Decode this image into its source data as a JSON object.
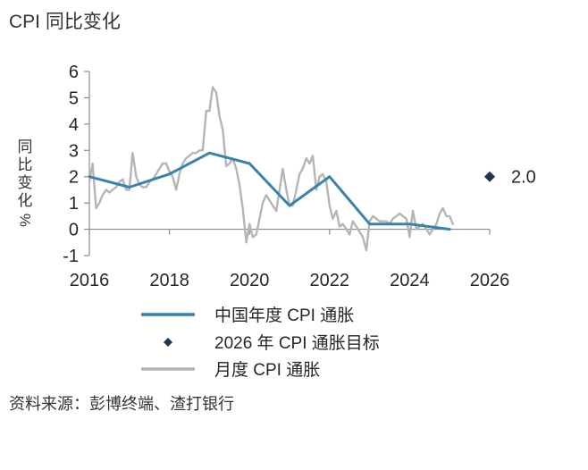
{
  "title": "CPI 同比变化",
  "source": "资料来源：彭博终端、渣打银行",
  "chart_data": {
    "type": "line",
    "ylabel": "同比变化%",
    "xlim": [
      2016,
      2026
    ],
    "ylim": [
      -1,
      6
    ],
    "x_ticks": [
      "2016",
      "2018",
      "2020",
      "2022",
      "2024",
      "2026"
    ],
    "y_ticks": [
      "-1",
      "0",
      "1",
      "2",
      "3",
      "4",
      "5",
      "6"
    ],
    "grid": false,
    "legend_position": "bottom",
    "colors": {
      "annual": "#3a82ab",
      "target": "#1f3550",
      "monthly": "#b5b5b5"
    },
    "series": [
      {
        "name": "中国年度 CPI 通胀",
        "x": [
          2016.0,
          2017.0,
          2018.0,
          2019.0,
          2020.0,
          2021.0,
          2022.0,
          2023.0,
          2024.0,
          2025.0
        ],
        "values": [
          2.0,
          1.6,
          2.1,
          2.9,
          2.5,
          0.9,
          2.0,
          0.2,
          0.2,
          0.0
        ]
      },
      {
        "name": "月度 CPI 通胀",
        "x": [
          2016.0,
          2016.08,
          2016.17,
          2016.25,
          2016.33,
          2016.42,
          2016.5,
          2016.58,
          2016.67,
          2016.75,
          2016.83,
          2016.92,
          2017.0,
          2017.08,
          2017.17,
          2017.25,
          2017.33,
          2017.42,
          2017.5,
          2017.58,
          2017.67,
          2017.75,
          2017.83,
          2017.92,
          2018.0,
          2018.08,
          2018.17,
          2018.25,
          2018.33,
          2018.42,
          2018.5,
          2018.58,
          2018.67,
          2018.75,
          2018.83,
          2018.92,
          2019.0,
          2019.08,
          2019.17,
          2019.25,
          2019.33,
          2019.42,
          2019.5,
          2019.58,
          2019.67,
          2019.75,
          2019.83,
          2019.92,
          2020.0,
          2020.08,
          2020.17,
          2020.25,
          2020.33,
          2020.42,
          2020.5,
          2020.58,
          2020.67,
          2020.75,
          2020.83,
          2020.92,
          2021.0,
          2021.08,
          2021.17,
          2021.25,
          2021.33,
          2021.42,
          2021.5,
          2021.58,
          2021.67,
          2021.75,
          2021.83,
          2021.92,
          2022.0,
          2022.08,
          2022.17,
          2022.25,
          2022.33,
          2022.42,
          2022.5,
          2022.58,
          2022.67,
          2022.75,
          2022.83,
          2022.92,
          2023.0,
          2023.08,
          2023.17,
          2023.25,
          2023.33,
          2023.42,
          2023.5,
          2023.58,
          2023.67,
          2023.75,
          2023.83,
          2023.92,
          2024.0,
          2024.08,
          2024.17,
          2024.25,
          2024.33,
          2024.42,
          2024.5,
          2024.58,
          2024.67,
          2024.75,
          2024.83,
          2024.92,
          2025.0,
          2025.08
        ],
        "values": [
          1.8,
          2.5,
          0.8,
          1.0,
          1.3,
          1.5,
          1.4,
          1.5,
          1.6,
          1.8,
          1.9,
          1.5,
          1.5,
          2.9,
          2.0,
          1.7,
          1.6,
          1.6,
          1.8,
          1.9,
          2.1,
          2.3,
          2.5,
          2.5,
          2.2,
          2.0,
          1.5,
          2.1,
          2.5,
          2.7,
          2.8,
          2.9,
          2.9,
          3.0,
          3.0,
          4.5,
          4.5,
          5.4,
          5.2,
          4.3,
          3.8,
          2.4,
          2.5,
          2.7,
          2.3,
          1.7,
          0.8,
          -0.5,
          0.2,
          -0.3,
          -0.2,
          0.4,
          1.0,
          1.3,
          1.1,
          0.9,
          0.7,
          1.5,
          2.3,
          1.5,
          0.9,
          0.9,
          1.5,
          2.1,
          2.3,
          2.7,
          2.5,
          2.8,
          1.5,
          2.0,
          2.1,
          1.8,
          0.9,
          0.4,
          0.7,
          0.1,
          0.2,
          0.0,
          -0.2,
          0.3,
          0.1,
          -0.1,
          -0.3,
          -0.8,
          0.3,
          0.5,
          0.4,
          0.3,
          0.3,
          0.3,
          0.2,
          0.4,
          0.5,
          0.6,
          0.5,
          0.4,
          -0.3,
          0.7,
          0.0,
          0.1,
          0.2,
          0.0,
          -0.2,
          0.0,
          0.2,
          0.6,
          0.8,
          0.5,
          0.5,
          0.2
        ]
      }
    ],
    "target": {
      "name": "2026 年 CPI 通胀目标",
      "x": 2026.0,
      "value": 2.0,
      "label": "2.0"
    },
    "legend": [
      {
        "label": "中国年度 CPI 通胀",
        "kind": "line",
        "color": "#3a82ab"
      },
      {
        "label": "2026 年 CPI 通胀目标",
        "kind": "diamond",
        "color": "#1f3550"
      },
      {
        "label": "月度 CPI 通胀",
        "kind": "line",
        "color": "#b5b5b5"
      }
    ]
  }
}
